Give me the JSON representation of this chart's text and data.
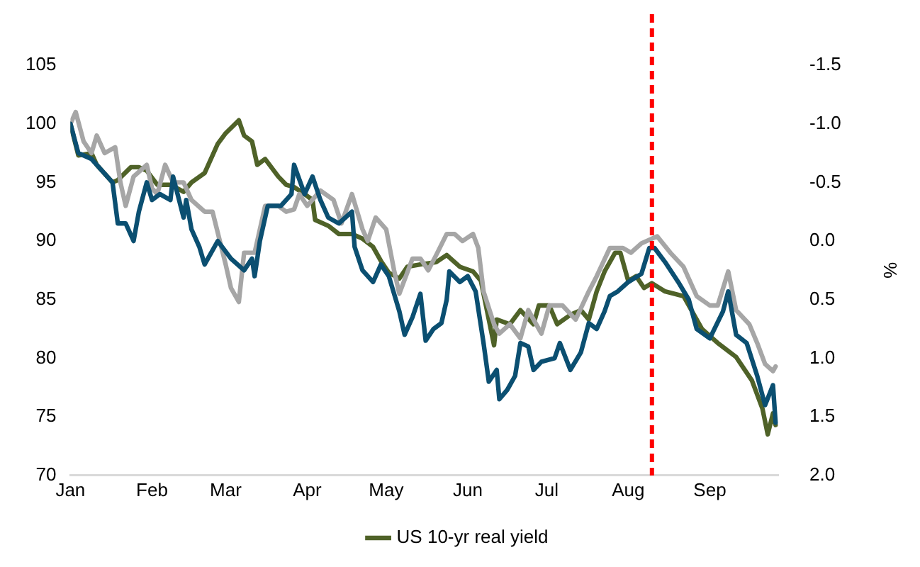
{
  "chart_data": {
    "type": "line",
    "y2label": "%",
    "xlim": [
      "--01-01",
      "--09-27"
    ],
    "xticks": [
      {
        "value": "--01-01",
        "label": "Jan"
      },
      {
        "value": "--02-01",
        "label": "Feb"
      },
      {
        "value": "--03-01",
        "label": "Mar"
      },
      {
        "value": "--04-01",
        "label": "Apr"
      },
      {
        "value": "--05-01",
        "label": "May"
      },
      {
        "value": "--06-01",
        "label": "Jun"
      },
      {
        "value": "--07-01",
        "label": "Jul"
      },
      {
        "value": "--08-01",
        "label": "Aug"
      },
      {
        "value": "--09-01",
        "label": "Sep"
      }
    ],
    "ylim": [
      70,
      105
    ],
    "yticks": [
      70,
      75,
      80,
      85,
      90,
      95,
      100,
      105
    ],
    "y2lim": [
      2.0,
      -1.5
    ],
    "y2ticks": [
      {
        "value": 2.0,
        "label": "2.0"
      },
      {
        "value": 1.5,
        "label": "1.5"
      },
      {
        "value": 1.0,
        "label": "1.0"
      },
      {
        "value": 0.5,
        "label": "0.5"
      },
      {
        "value": 0.0,
        "label": "0.0"
      },
      {
        "value": -0.5,
        "label": "-0.5"
      },
      {
        "value": -1.0,
        "label": "-1.0"
      },
      {
        "value": -1.5,
        "label": "-1.5"
      }
    ],
    "grid": false,
    "legend": "bottom",
    "marker": "none",
    "line_style": "solid",
    "ref_lines": [
      {
        "axis": "x",
        "value": "--08-10",
        "label": null,
        "color": "#ff0000",
        "line_style": "dashed"
      }
    ],
    "series": [
      {
        "color": "#0b4f71",
        "x": [
          "--01-01",
          "--01-04",
          "--01-09",
          "--01-17",
          "--01-19",
          "--01-22",
          "--01-25",
          "--01-27",
          "--01-30",
          "--02-01",
          "--02-04",
          "--02-08",
          "--02-09",
          "--02-13",
          "--02-14",
          "--02-16",
          "--02-19",
          "--02-21",
          "--02-26",
          "--03-03",
          "--03-08",
          "--03-11",
          "--03-12",
          "--03-14",
          "--03-17",
          "--03-22",
          "--03-26",
          "--03-27",
          "--03-31",
          "--04-03",
          "--04-06",
          "--04-09",
          "--04-13",
          "--04-18",
          "--04-19",
          "--04-22",
          "--04-26",
          "--04-29",
          "--05-02",
          "--05-06",
          "--05-08",
          "--05-11",
          "--05-14",
          "--05-16",
          "--05-19",
          "--05-22",
          "--05-24",
          "--05-25",
          "--05-29",
          "--06-01",
          "--06-04",
          "--06-07",
          "--06-09",
          "--06-12",
          "--06-13",
          "--06-16",
          "--06-19",
          "--06-21",
          "--06-24",
          "--06-26",
          "--06-29",
          "--07-04",
          "--07-06",
          "--07-10",
          "--07-14",
          "--07-17",
          "--07-20",
          "--07-23",
          "--07-25",
          "--07-28",
          "--08-01",
          "--08-06",
          "--08-09",
          "--08-11",
          "--08-15",
          "--08-20",
          "--08-24",
          "--08-27",
          "--09-01",
          "--09-06",
          "--09-08",
          "--09-11",
          "--09-15",
          "--09-19",
          "--09-22",
          "--09-25",
          "--09-26"
        ],
        "values": [
          100,
          97.5,
          97,
          95,
          91.5,
          91.5,
          90,
          92.5,
          95,
          93.5,
          94,
          93.5,
          95.5,
          92,
          93.5,
          91,
          89.5,
          88,
          90,
          88.5,
          87.5,
          88.5,
          87,
          90,
          93,
          93,
          94,
          96.5,
          94,
          95.5,
          93.5,
          92,
          91.5,
          92.5,
          89.5,
          87.5,
          86.5,
          88,
          87,
          84,
          82,
          83.5,
          85.5,
          81.5,
          82.5,
          83,
          85,
          87.4,
          86.5,
          87,
          85.7,
          81.3,
          78,
          79,
          76.5,
          77.3,
          78.5,
          81.3,
          81,
          79,
          79.7,
          80,
          81.3,
          79,
          80.5,
          83,
          82.5,
          84,
          85.3,
          85.7,
          86.5,
          87.2,
          89.4,
          89.4,
          88.2,
          86.5,
          85,
          82.5,
          81.7,
          84,
          85.7,
          82,
          81.3,
          78.5,
          76,
          77.7,
          74.5
        ]
      },
      {
        "color": "#a6a6a6",
        "x": [
          "--01-01",
          "--01-03",
          "--01-06",
          "--01-09",
          "--01-11",
          "--01-14",
          "--01-18",
          "--01-20",
          "--01-22",
          "--01-25",
          "--01-30",
          "--02-01",
          "--02-03",
          "--02-06",
          "--02-09",
          "--02-13",
          "--02-16",
          "--02-21",
          "--02-24",
          "--03-01",
          "--03-03",
          "--03-06",
          "--03-08",
          "--03-12",
          "--03-16",
          "--03-21",
          "--03-24",
          "--03-27",
          "--03-29",
          "--04-01",
          "--04-06",
          "--04-11",
          "--04-14",
          "--04-18",
          "--04-22",
          "--04-24",
          "--04-27",
          "--05-01",
          "--05-04",
          "--05-06",
          "--05-11",
          "--05-14",
          "--05-17",
          "--05-20",
          "--05-24",
          "--05-27",
          "--05-30",
          "--06-03",
          "--06-05",
          "--06-07",
          "--06-11",
          "--06-13",
          "--06-17",
          "--06-21",
          "--06-24",
          "--06-29",
          "--07-02",
          "--07-07",
          "--07-12",
          "--07-17",
          "--07-20",
          "--07-25",
          "--07-30",
          "--08-02",
          "--08-06",
          "--08-12",
          "--08-17",
          "--08-22",
          "--08-27",
          "--09-01",
          "--09-04",
          "--09-08",
          "--09-11",
          "--09-16",
          "--09-19",
          "--09-22",
          "--09-25",
          "--09-26"
        ],
        "values": [
          100,
          101,
          98.5,
          97.5,
          99,
          97.5,
          98,
          95,
          93,
          95.5,
          96.5,
          94.5,
          94,
          96.5,
          95,
          95,
          93.5,
          92.5,
          92.5,
          88,
          86,
          84.8,
          89,
          89,
          93,
          93,
          92.5,
          92.7,
          94,
          93,
          94.3,
          93.5,
          91.5,
          94,
          91,
          90,
          92,
          91,
          87.5,
          85.5,
          88.5,
          88.5,
          87.5,
          88.8,
          90.6,
          90.6,
          90,
          90.6,
          89.4,
          85.7,
          82.9,
          82.1,
          82.9,
          81.7,
          84.1,
          82.1,
          84.5,
          84.5,
          83.3,
          85.7,
          87,
          89.4,
          89.4,
          89,
          89.8,
          90.4,
          89,
          87.8,
          85.3,
          84.5,
          84.5,
          87.4,
          84.1,
          82.9,
          81.3,
          79.5,
          78.9,
          79.3
        ]
      },
      {
        "name": "US 10-yr real yield",
        "color": "#4f6228",
        "axis": "y2",
        "x": [
          "--01-01",
          "--01-04",
          "--01-09",
          "--01-11",
          "--01-17",
          "--01-19",
          "--01-24",
          "--01-27",
          "--01-30",
          "--02-03",
          "--02-08",
          "--02-13",
          "--02-16",
          "--02-21",
          "--02-26",
          "--03-01",
          "--03-06",
          "--03-08",
          "--03-11",
          "--03-13",
          "--03-16",
          "--03-21",
          "--03-24",
          "--03-27",
          "--03-31",
          "--04-03",
          "--04-04",
          "--04-09",
          "--04-13",
          "--04-18",
          "--04-22",
          "--04-26",
          "--04-29",
          "--05-02",
          "--05-06",
          "--05-09",
          "--05-14",
          "--05-20",
          "--05-24",
          "--05-29",
          "--06-03",
          "--06-06",
          "--06-09",
          "--06-11",
          "--06-12",
          "--06-17",
          "--06-21",
          "--06-26",
          "--06-28",
          "--07-02",
          "--07-05",
          "--07-10",
          "--07-14",
          "--07-17",
          "--07-20",
          "--07-23",
          "--07-27",
          "--07-29",
          "--08-01",
          "--08-04",
          "--08-07",
          "--08-10",
          "--08-15",
          "--08-22",
          "--08-29",
          "--09-04",
          "--09-11",
          "--09-17",
          "--09-21",
          "--09-23",
          "--09-25",
          "--09-26"
        ],
        "values": [
          -1.0,
          -0.73,
          -0.75,
          -0.65,
          -0.5,
          -0.52,
          -0.63,
          -0.63,
          -0.6,
          -0.48,
          -0.48,
          -0.42,
          -0.5,
          -0.58,
          -0.83,
          -0.92,
          -1.03,
          -0.9,
          -0.85,
          -0.65,
          -0.7,
          -0.55,
          -0.48,
          -0.46,
          -0.4,
          -0.35,
          -0.18,
          -0.13,
          -0.06,
          -0.06,
          -0.02,
          0.05,
          0.17,
          0.27,
          0.32,
          0.22,
          0.2,
          0.18,
          0.12,
          0.22,
          0.26,
          0.34,
          0.67,
          0.89,
          0.67,
          0.71,
          0.59,
          0.71,
          0.55,
          0.55,
          0.71,
          0.63,
          0.59,
          0.67,
          0.43,
          0.26,
          0.1,
          0.1,
          0.34,
          0.3,
          0.4,
          0.36,
          0.43,
          0.47,
          0.75,
          0.87,
          0.99,
          1.19,
          1.43,
          1.65,
          1.47,
          1.57
        ]
      }
    ]
  }
}
